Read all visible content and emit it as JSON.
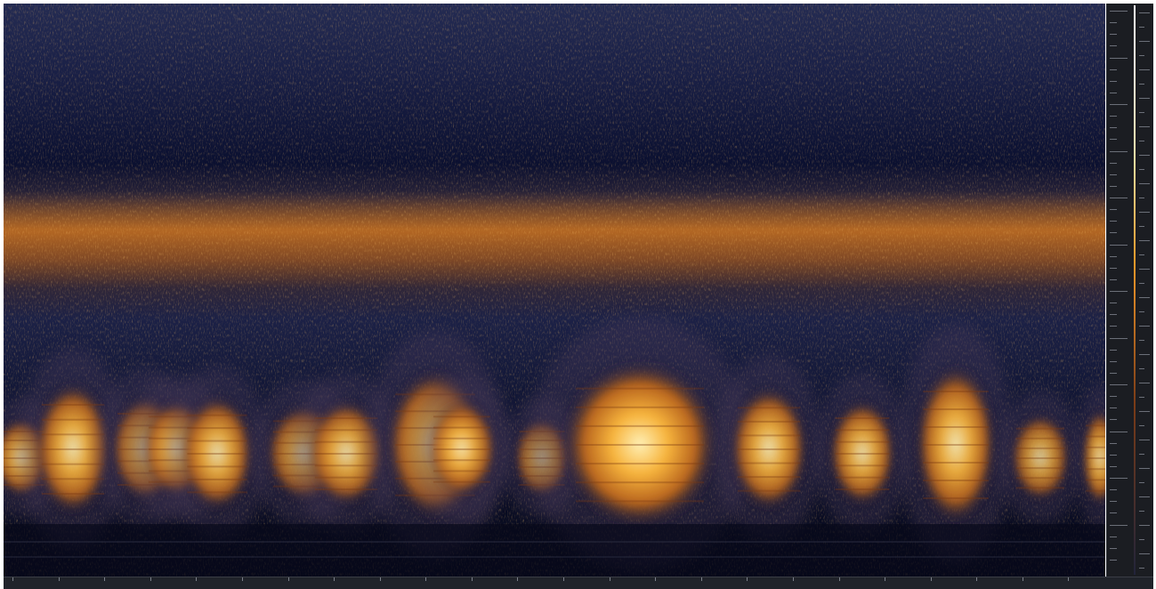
{
  "app": {
    "name": "",
    "view": "spectrogram"
  },
  "colormap": {
    "low": "#0d1230",
    "mid": "#f39a2a",
    "high": "#ffe7a8",
    "peak": "#ffffff"
  },
  "spectrogram": {
    "events": [
      {
        "id": "call-1",
        "intensity": 0.7
      },
      {
        "id": "call-2",
        "intensity": 0.8
      },
      {
        "id": "call-3",
        "intensity": 0.65
      },
      {
        "id": "call-4",
        "intensity": 0.75
      },
      {
        "id": "call-5",
        "intensity": 0.75
      },
      {
        "id": "call-6",
        "intensity": 0.55
      },
      {
        "id": "call-7",
        "intensity": 0.7
      },
      {
        "id": "call-8",
        "intensity": 0.75
      },
      {
        "id": "call-9",
        "intensity": 0.75
      },
      {
        "id": "call-10",
        "intensity": 0.45
      },
      {
        "id": "call-11",
        "intensity": 1.0
      },
      {
        "id": "call-12",
        "intensity": 0.8
      },
      {
        "id": "call-13",
        "intensity": 0.75
      },
      {
        "id": "call-14",
        "intensity": 0.85
      },
      {
        "id": "call-15",
        "intensity": 0.55
      },
      {
        "id": "call-16",
        "intensity": 0.7
      }
    ]
  },
  "rulers": {
    "time_ticks": 24,
    "freq_ticks": 48
  }
}
